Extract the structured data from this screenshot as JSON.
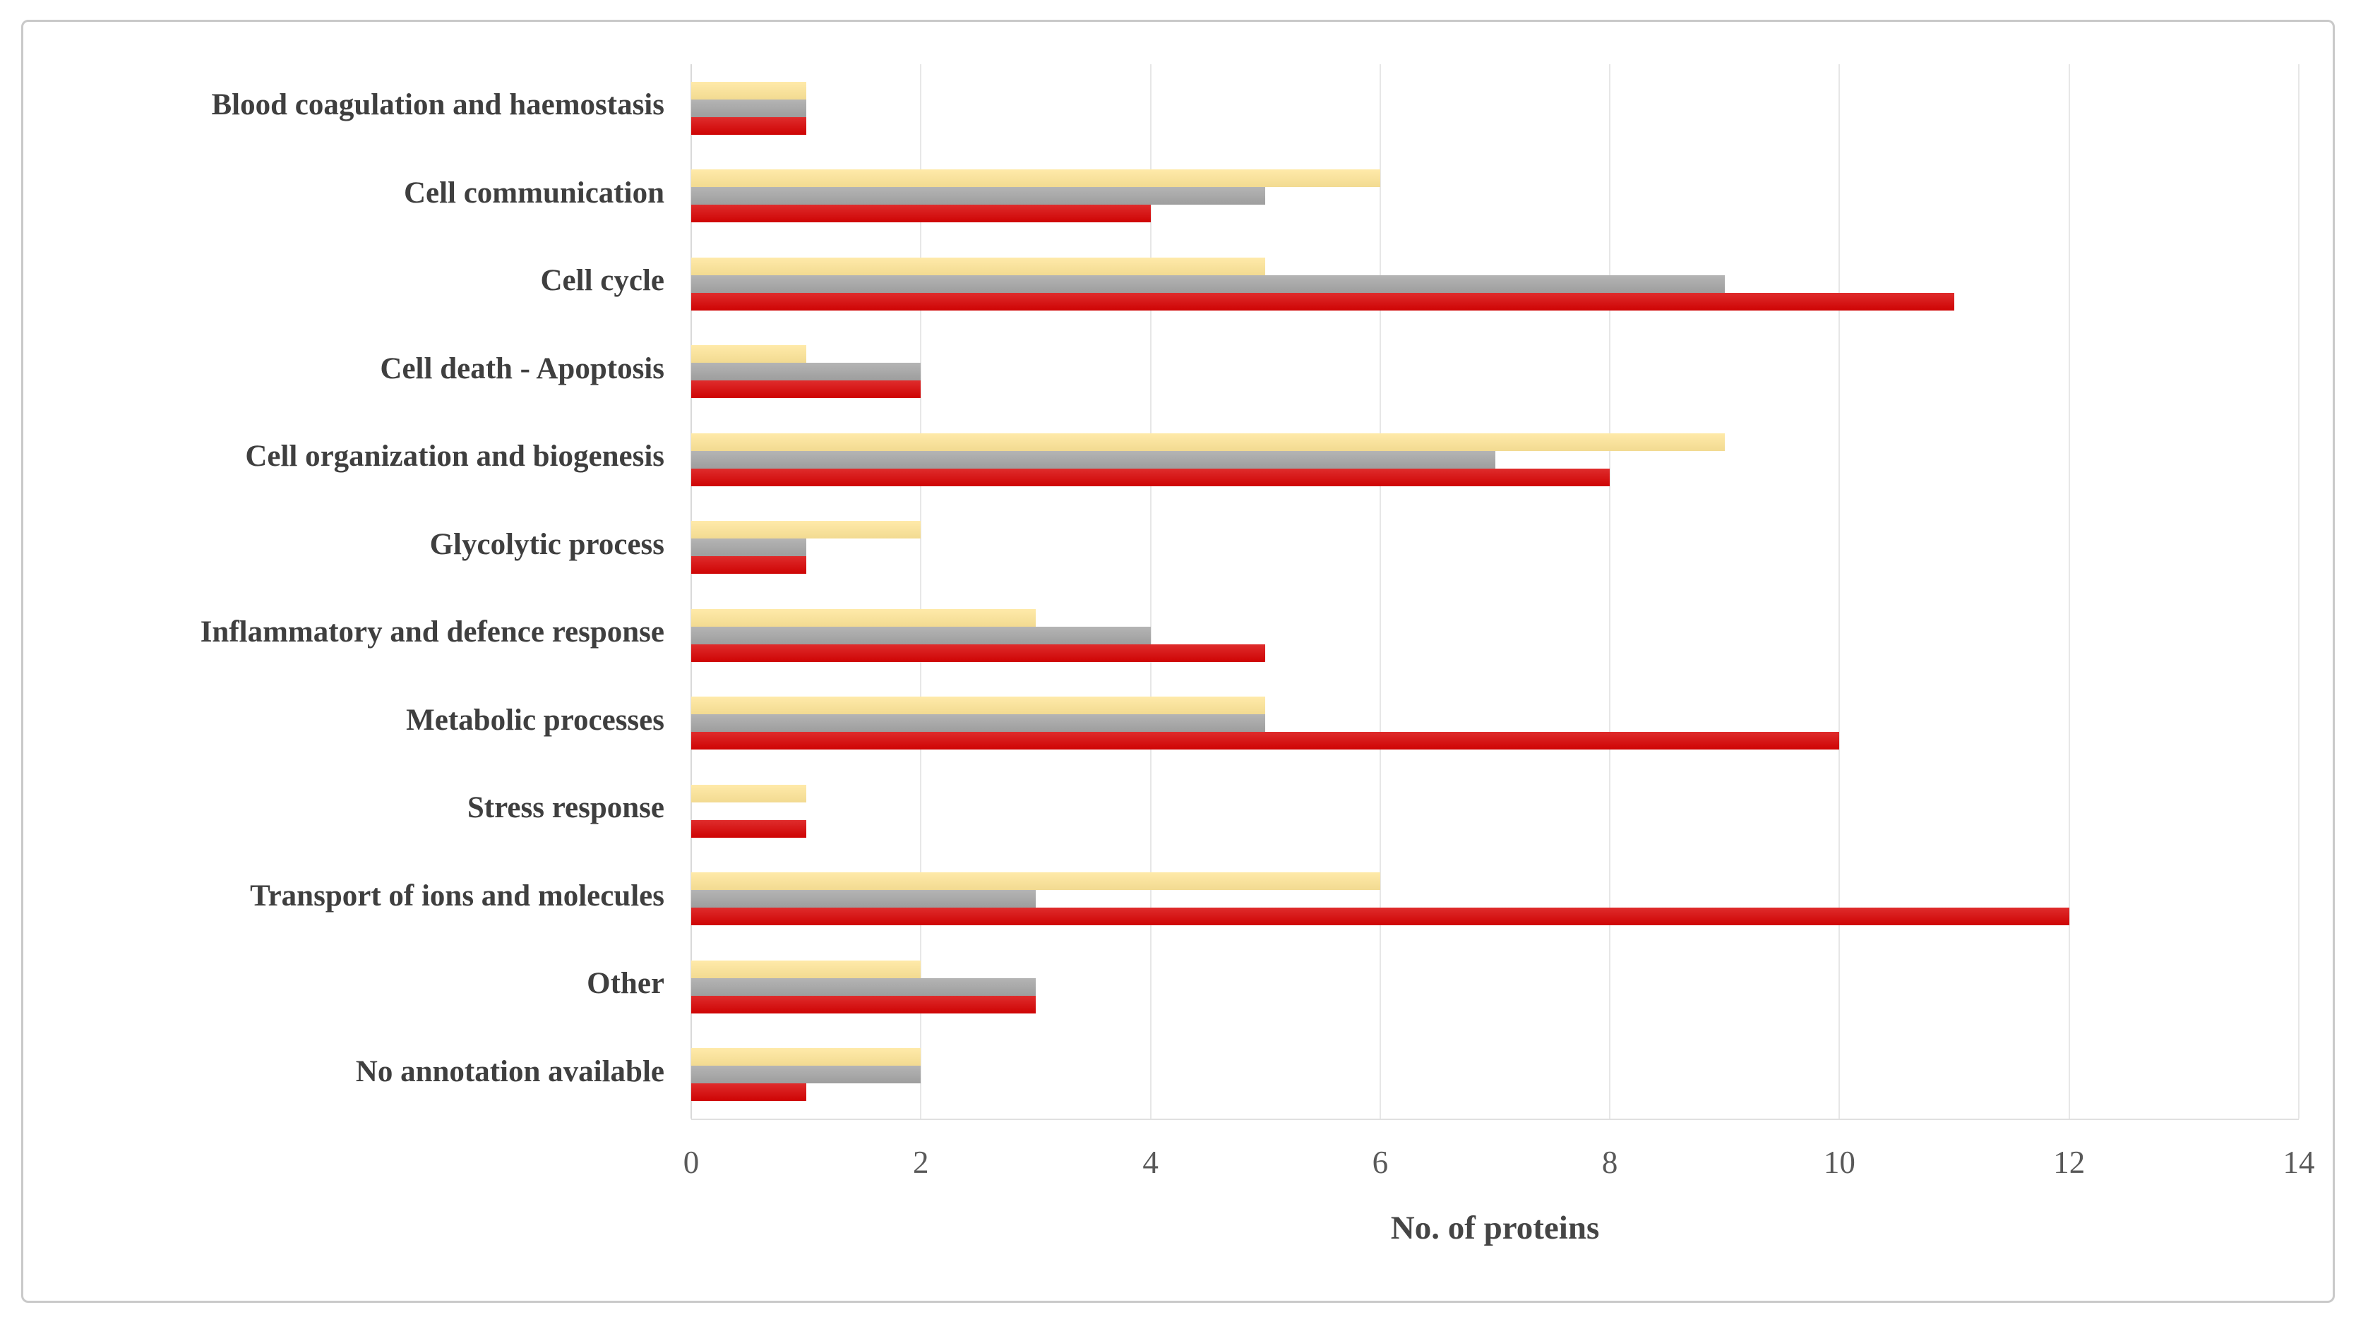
{
  "figure": {
    "background_color": "#ffffff",
    "border_color": "#c9c9c9",
    "gridline_color": "#e7e7e7",
    "label_color": "#3f3f3f",
    "tick_color": "#595959"
  },
  "chart_data": {
    "type": "bar",
    "orientation": "horizontal",
    "title": "",
    "xlabel": "No. of proteins",
    "ylabel": "",
    "xlim": [
      0,
      14
    ],
    "x_ticks": [
      "0",
      "2",
      "4",
      "6",
      "8",
      "10",
      "12",
      "14"
    ],
    "grid": "vertical-only",
    "legend": "none",
    "categories": [
      "Blood coagulation and haemostasis",
      "Cell communication",
      "Cell cycle",
      "Cell death - Apoptosis",
      "Cell organization and biogenesis",
      "Glycolytic process",
      "Inflammatory and defence response",
      "Metabolic processes",
      "Stress response",
      "Transport of ions and molecules",
      "Other",
      "No annotation available"
    ],
    "series": [
      {
        "name": "yellow",
        "color": "#ffe699",
        "values": [
          1,
          6,
          5,
          1,
          9,
          2,
          3,
          5,
          1,
          6,
          2,
          2
        ]
      },
      {
        "name": "gray",
        "color": "#a6a6a6",
        "values": [
          1,
          5,
          9,
          2,
          7,
          1,
          4,
          5,
          0,
          3,
          3,
          2
        ]
      },
      {
        "name": "red",
        "color": "#d90404",
        "values": [
          1,
          4,
          11,
          2,
          8,
          1,
          5,
          10,
          1,
          12,
          3,
          1
        ]
      }
    ]
  }
}
